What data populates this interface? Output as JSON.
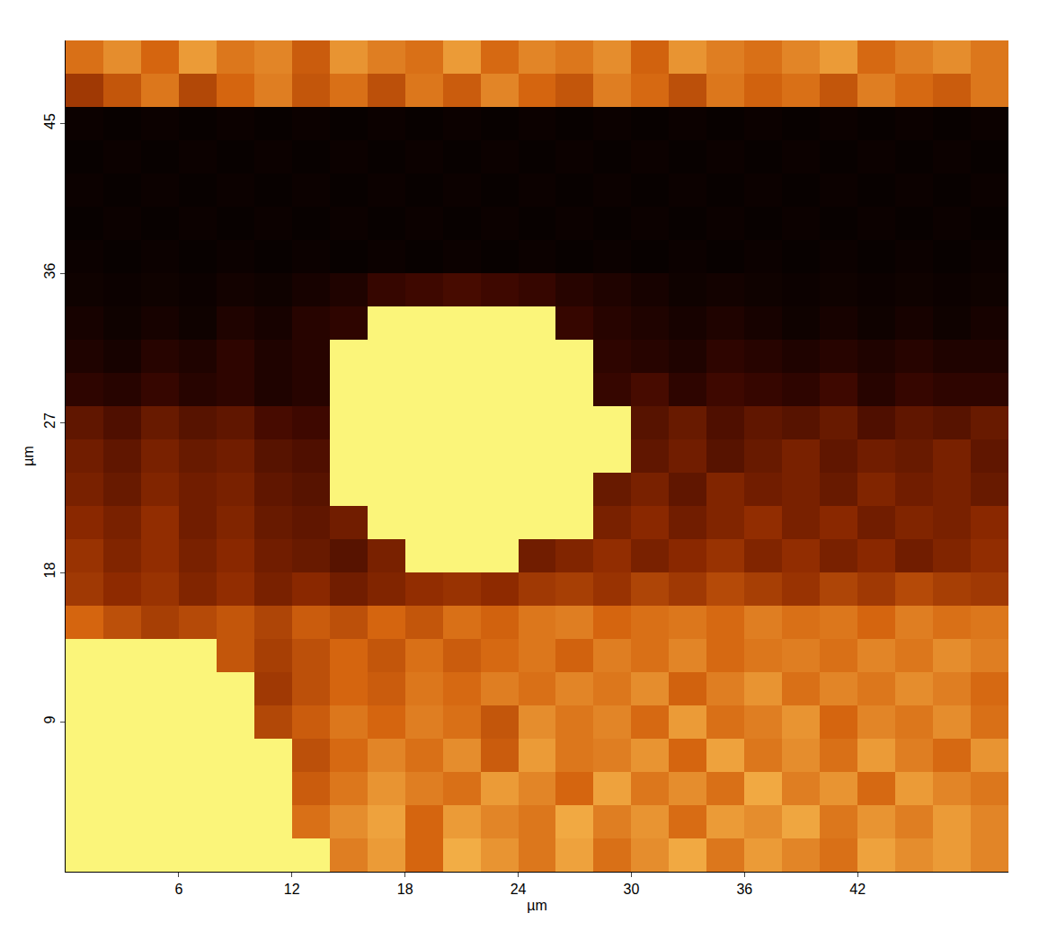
{
  "chart_data": {
    "type": "heatmap",
    "x_label": "µm",
    "y_label": "µm",
    "x": [
      1,
      3,
      5,
      7,
      9,
      11,
      13,
      15,
      17,
      19,
      21,
      23,
      25,
      27,
      29,
      31,
      33,
      35,
      37,
      39,
      41,
      43,
      45,
      47,
      49
    ],
    "y": [
      1,
      3,
      5,
      7,
      9,
      11,
      13,
      15,
      17,
      19,
      21,
      23,
      25,
      27,
      29,
      31,
      33,
      35,
      37,
      39,
      41,
      43,
      45,
      47,
      49
    ],
    "z": [
      [
        100,
        100,
        100,
        100,
        100,
        100,
        100,
        62,
        70,
        55,
        75,
        68,
        60,
        72,
        58,
        66,
        74,
        60,
        70,
        64,
        58,
        72,
        66,
        70,
        64
      ],
      [
        100,
        100,
        100,
        100,
        100,
        100,
        58,
        66,
        72,
        55,
        70,
        64,
        60,
        74,
        62,
        68,
        57,
        70,
        66,
        73,
        60,
        68,
        62,
        70,
        64
      ],
      [
        100,
        100,
        100,
        100,
        100,
        100,
        52,
        60,
        68,
        62,
        58,
        70,
        64,
        55,
        72,
        60,
        66,
        58,
        74,
        62,
        68,
        56,
        70,
        64,
        60
      ],
      [
        100,
        100,
        100,
        100,
        100,
        100,
        48,
        56,
        64,
        58,
        66,
        52,
        70,
        60,
        62,
        68,
        55,
        72,
        60,
        66,
        58,
        70,
        62,
        56,
        68
      ],
      [
        100,
        100,
        100,
        100,
        100,
        45,
        52,
        60,
        55,
        62,
        58,
        50,
        66,
        60,
        64,
        56,
        70,
        58,
        62,
        68,
        55,
        64,
        60,
        66,
        58
      ],
      [
        100,
        100,
        100,
        100,
        100,
        40,
        48,
        55,
        52,
        60,
        56,
        62,
        58,
        64,
        60,
        66,
        54,
        62,
        68,
        58,
        64,
        60,
        66,
        62,
        56
      ],
      [
        100,
        100,
        100,
        100,
        50,
        42,
        48,
        55,
        50,
        58,
        52,
        56,
        60,
        54,
        62,
        58,
        64,
        56,
        60,
        62,
        58,
        64,
        60,
        66,
        62
      ],
      [
        55,
        48,
        42,
        46,
        50,
        44,
        52,
        48,
        55,
        50,
        58,
        54,
        60,
        62,
        55,
        58,
        60,
        56,
        62,
        58,
        60,
        55,
        62,
        58,
        60
      ],
      [
        40,
        35,
        38,
        32,
        36,
        30,
        34,
        28,
        32,
        36,
        38,
        35,
        40,
        42,
        38,
        44,
        40,
        46,
        42,
        38,
        44,
        40,
        46,
        42,
        40
      ],
      [
        38,
        32,
        36,
        30,
        34,
        28,
        26,
        22,
        30,
        100,
        100,
        100,
        28,
        32,
        36,
        30,
        34,
        38,
        32,
        36,
        30,
        34,
        28,
        32,
        36
      ],
      [
        34,
        30,
        36,
        28,
        32,
        26,
        24,
        28,
        100,
        100,
        100,
        100,
        100,
        100,
        30,
        34,
        28,
        32,
        36,
        30,
        34,
        28,
        32,
        30,
        34
      ],
      [
        30,
        26,
        32,
        28,
        30,
        24,
        22,
        100,
        100,
        100,
        100,
        100,
        100,
        100,
        26,
        30,
        24,
        32,
        28,
        30,
        26,
        32,
        28,
        30,
        26
      ],
      [
        28,
        24,
        30,
        26,
        28,
        22,
        20,
        100,
        100,
        100,
        100,
        100,
        100,
        100,
        100,
        24,
        28,
        22,
        26,
        30,
        24,
        28,
        26,
        30,
        24
      ],
      [
        24,
        20,
        26,
        22,
        24,
        18,
        16,
        100,
        100,
        100,
        100,
        100,
        100,
        100,
        100,
        22,
        26,
        20,
        24,
        22,
        26,
        20,
        24,
        22,
        26
      ],
      [
        12,
        10,
        14,
        10,
        12,
        8,
        10,
        100,
        100,
        100,
        100,
        100,
        100,
        100,
        14,
        18,
        12,
        16,
        14,
        12,
        16,
        10,
        14,
        12,
        12
      ],
      [
        8,
        6,
        10,
        8,
        12,
        8,
        10,
        100,
        100,
        100,
        100,
        100,
        100,
        100,
        12,
        10,
        8,
        12,
        10,
        8,
        10,
        8,
        10,
        8,
        8
      ],
      [
        6,
        4,
        6,
        4,
        8,
        6,
        10,
        12,
        100,
        100,
        100,
        100,
        100,
        14,
        10,
        8,
        6,
        8,
        6,
        4,
        6,
        4,
        6,
        4,
        6
      ],
      [
        4,
        3,
        4,
        3,
        5,
        4,
        6,
        8,
        14,
        16,
        18,
        16,
        14,
        10,
        8,
        6,
        4,
        5,
        4,
        3,
        4,
        3,
        4,
        3,
        4
      ],
      [
        3,
        2,
        3,
        2,
        3,
        2,
        3,
        2,
        3,
        2,
        3,
        2,
        3,
        2,
        3,
        2,
        3,
        2,
        3,
        2,
        3,
        2,
        3,
        2,
        3
      ],
      [
        2,
        3,
        2,
        3,
        2,
        3,
        2,
        3,
        2,
        3,
        2,
        3,
        2,
        3,
        2,
        3,
        2,
        3,
        2,
        3,
        2,
        3,
        2,
        3,
        2
      ],
      [
        3,
        2,
        3,
        2,
        3,
        2,
        3,
        2,
        3,
        2,
        3,
        2,
        3,
        2,
        3,
        2,
        3,
        2,
        3,
        2,
        3,
        2,
        3,
        2,
        3
      ],
      [
        2,
        3,
        2,
        3,
        2,
        3,
        2,
        3,
        2,
        3,
        2,
        3,
        2,
        3,
        2,
        3,
        2,
        3,
        2,
        3,
        2,
        3,
        2,
        3,
        2
      ],
      [
        3,
        2,
        3,
        2,
        3,
        2,
        3,
        2,
        3,
        2,
        3,
        2,
        3,
        2,
        3,
        2,
        3,
        2,
        3,
        2,
        3,
        2,
        3,
        2,
        3
      ],
      [
        40,
        50,
        60,
        45,
        55,
        62,
        50,
        58,
        48,
        60,
        52,
        64,
        55,
        50,
        62,
        56,
        48,
        60,
        54,
        58,
        50,
        62,
        56,
        52,
        60
      ],
      [
        58,
        66,
        55,
        70,
        60,
        64,
        52,
        68,
        62,
        58,
        70,
        56,
        64,
        60,
        66,
        54,
        68,
        62,
        58,
        64,
        70,
        56,
        62,
        66,
        60
      ]
    ],
    "zlim": [
      0,
      100
    ],
    "xlim": [
      0,
      50
    ],
    "ylim": [
      0,
      50
    ],
    "xticks": [
      6,
      12,
      18,
      24,
      30,
      36,
      42
    ],
    "yticks": [
      9,
      18,
      27,
      36,
      45
    ]
  }
}
